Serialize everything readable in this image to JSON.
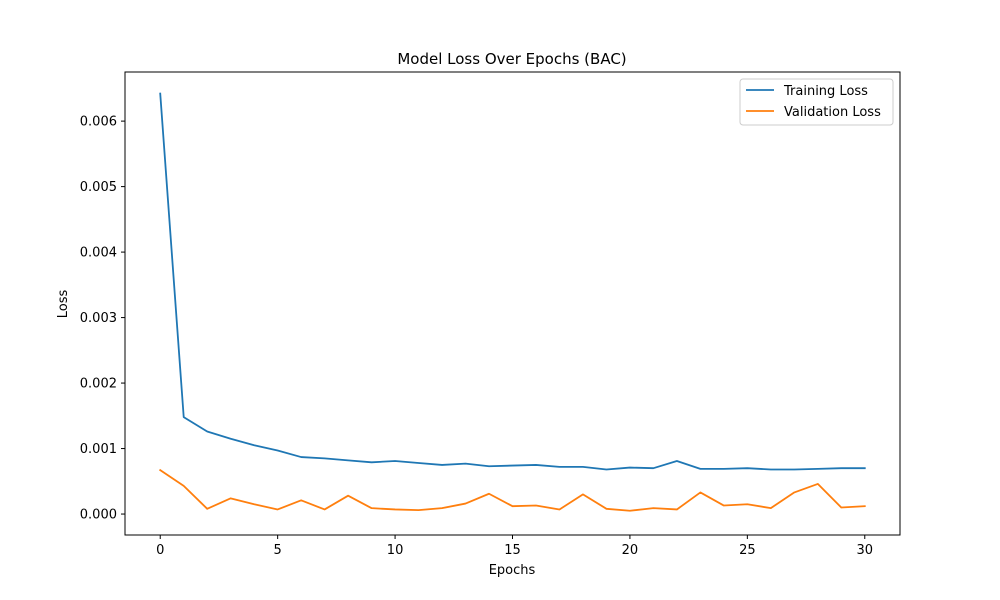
{
  "chart_data": {
    "type": "line",
    "title": "Model Loss Over Epochs (BAC)",
    "xlabel": "Epochs",
    "ylabel": "Loss",
    "xlim": [
      -1.5,
      31.5
    ],
    "ylim": [
      -0.00032,
      0.00675
    ],
    "xticks": [
      0,
      5,
      10,
      15,
      20,
      25,
      30
    ],
    "yticks": [
      0.0,
      0.001,
      0.002,
      0.003,
      0.004,
      0.005,
      0.006
    ],
    "ytick_labels": [
      "0.000",
      "0.001",
      "0.002",
      "0.003",
      "0.004",
      "0.005",
      "0.006"
    ],
    "grid": false,
    "legend_position": "top-right",
    "x": [
      0,
      1,
      2,
      3,
      4,
      5,
      6,
      7,
      8,
      9,
      10,
      11,
      12,
      13,
      14,
      15,
      16,
      17,
      18,
      19,
      20,
      21,
      22,
      23,
      24,
      25,
      26,
      27,
      28,
      29,
      30
    ],
    "series": [
      {
        "name": "Training Loss",
        "color": "#1f77b4",
        "values": [
          0.00642,
          0.00148,
          0.00126,
          0.00115,
          0.00105,
          0.00097,
          0.00087,
          0.00085,
          0.00082,
          0.00079,
          0.00081,
          0.00078,
          0.00075,
          0.00077,
          0.00073,
          0.00074,
          0.00075,
          0.00072,
          0.00072,
          0.00068,
          0.00071,
          0.0007,
          0.00081,
          0.00069,
          0.00069,
          0.0007,
          0.00068,
          0.00068,
          0.00069,
          0.0007,
          0.0007
        ]
      },
      {
        "name": "Validation Loss",
        "color": "#ff7f0e",
        "values": [
          0.00067,
          0.00043,
          8e-05,
          0.00024,
          0.00015,
          7e-05,
          0.00021,
          7e-05,
          0.00028,
          9e-05,
          7e-05,
          6e-05,
          9e-05,
          0.00016,
          0.00031,
          0.00012,
          0.00013,
          7e-05,
          0.0003,
          8e-05,
          5e-05,
          9e-05,
          7e-05,
          0.00033,
          0.00013,
          0.00015,
          9e-05,
          0.00033,
          0.00046,
          0.0001,
          0.00012
        ]
      }
    ]
  }
}
